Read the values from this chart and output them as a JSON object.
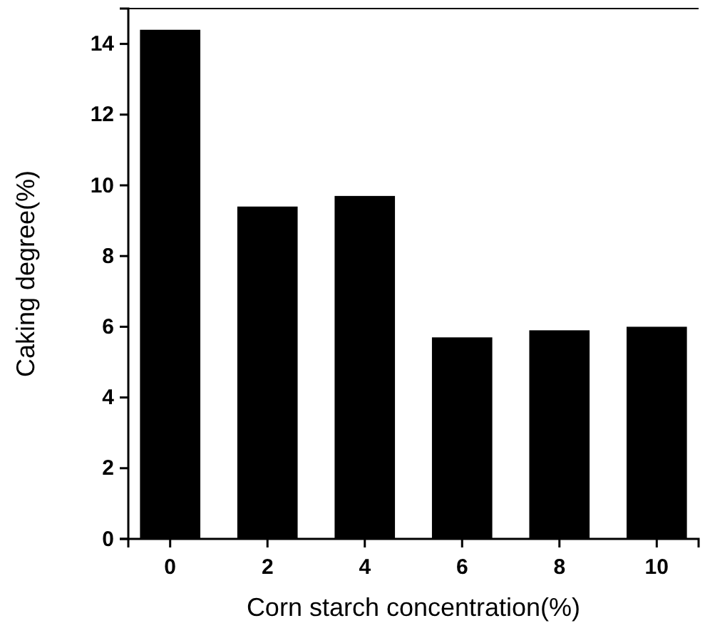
{
  "chart_data": {
    "type": "bar",
    "xlabel": "Corn starch concentration(%)",
    "ylabel": "Caking degree(%)",
    "categories": [
      "0",
      "2",
      "4",
      "6",
      "8",
      "10"
    ],
    "values": [
      14.4,
      9.4,
      9.7,
      5.7,
      5.9,
      6.0
    ],
    "color": "#000000",
    "ylim": [
      0,
      15
    ],
    "yticks": [
      0,
      2,
      4,
      6,
      8,
      10,
      12,
      14
    ],
    "grid": false
  }
}
